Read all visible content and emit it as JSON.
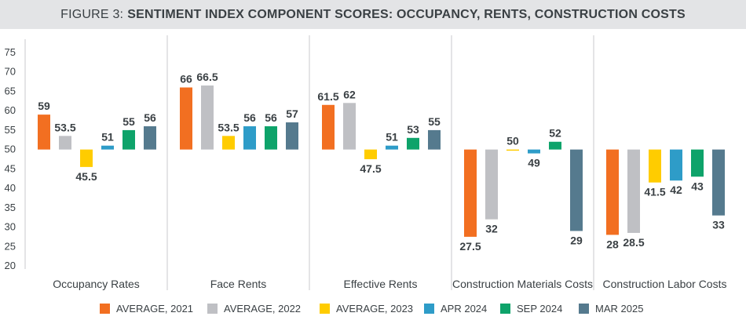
{
  "header": {
    "prefix": "FIGURE 3:",
    "title": "SENTIMENT INDEX COMPONENT SCORES: OCCUPANCY, RENTS, CONSTRUCTION COSTS"
  },
  "chart_data": {
    "type": "bar",
    "baseline": 50,
    "ylim": [
      20,
      75
    ],
    "yticks": [
      20,
      25,
      30,
      35,
      40,
      45,
      50,
      55,
      60,
      65,
      70,
      75
    ],
    "grid": "vertical separators between categories",
    "legend_position": "bottom",
    "categories": [
      "Occupancy Rates",
      "Face Rents",
      "Effective Rents",
      "Construction Materials Costs",
      "Construction Labor Costs"
    ],
    "series": [
      {
        "name": "AVERAGE, 2021",
        "color": "#f26f21",
        "values": [
          59,
          66,
          61.5,
          27.5,
          28
        ],
        "labels": [
          "59",
          "66",
          "61.5",
          "27.5",
          "28"
        ]
      },
      {
        "name": "AVERAGE, 2022",
        "color": "#bfc0c4",
        "values": [
          53.5,
          66.5,
          62,
          32,
          28.5
        ],
        "labels": [
          "53.5",
          "66.5",
          "62",
          "32",
          "28.5"
        ]
      },
      {
        "name": "AVERAGE, 2023",
        "color": "#ffcc00",
        "values": [
          45.5,
          53.5,
          47.5,
          50,
          41.5
        ],
        "labels": [
          "45.5",
          "53.5",
          "47.5",
          "50",
          "41.5"
        ]
      },
      {
        "name": "APR 2024",
        "color": "#2e9cc8",
        "values": [
          51,
          56,
          51,
          49,
          42
        ],
        "labels": [
          "51",
          "56",
          "51",
          "49",
          "42"
        ]
      },
      {
        "name": "SEP 2024",
        "color": "#0ea36a",
        "values": [
          55,
          56,
          53,
          52,
          43
        ],
        "labels": [
          "55",
          "56",
          "53",
          "52",
          "43"
        ]
      },
      {
        "name": "MAR 2025",
        "color": "#557a8e",
        "values": [
          56,
          57,
          55,
          29,
          33
        ],
        "labels": [
          "56",
          "57",
          "55",
          "29",
          "33"
        ]
      }
    ]
  }
}
